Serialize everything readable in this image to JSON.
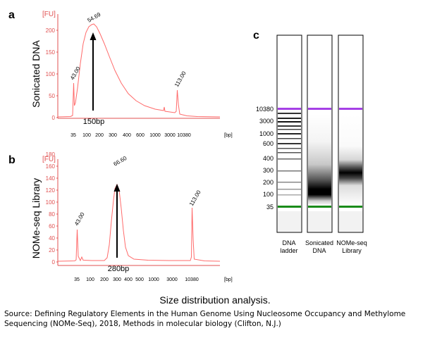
{
  "panels": {
    "a": {
      "letter": "a",
      "ylabel": "Sonicated DNA",
      "unit": "[FU]",
      "yticks": [
        "0",
        "50",
        "100",
        "150",
        "200"
      ],
      "xticks": [
        "35",
        "100",
        "200",
        "300",
        "400",
        "600",
        "1000",
        "3000",
        "10380"
      ],
      "xunit": "[bp]",
      "peaks": [
        {
          "label": "43.00"
        },
        {
          "label": "54.69"
        },
        {
          "label": "113.00"
        }
      ],
      "arrow_label": "150bp"
    },
    "b": {
      "letter": "b",
      "ylabel": "NOMe-seq Library",
      "unit": "[FU]",
      "yticks": [
        "0",
        "20",
        "40",
        "60",
        "80",
        "100",
        "120",
        "140",
        "160",
        "180"
      ],
      "xticks": [
        "35",
        "100",
        "200",
        "300",
        "400",
        "500",
        "1000",
        "3000",
        "10380"
      ],
      "xunit": "[bp]",
      "peaks": [
        {
          "label": "43.00"
        },
        {
          "label": "66.60"
        },
        {
          "label": "113.00"
        }
      ],
      "arrow_label": "280bp"
    },
    "c": {
      "letter": "c",
      "size_labels": [
        "10380",
        "3000",
        "1000",
        "600",
        "400",
        "300",
        "200",
        "100",
        "35"
      ],
      "lane_labels": [
        [
          "DNA",
          "ladder"
        ],
        [
          "Sonicated",
          "DNA"
        ],
        [
          "NOMe-seq",
          "Library"
        ]
      ]
    }
  },
  "caption": "Size distribution analysis.",
  "source_line1": "Source: Defining Regulatory Elements in the Human Genome Using Nucleosome Occupancy and Methylome",
  "source_line2": "Sequencing (NOMe-Seq), 2018, Methods in molecular biology (Clifton, N.J.)",
  "colors": {
    "trace": "#ff6b6b",
    "axis": "#e05050",
    "marker_purple": "#a640e6",
    "marker_green": "#1a8c1a"
  }
}
